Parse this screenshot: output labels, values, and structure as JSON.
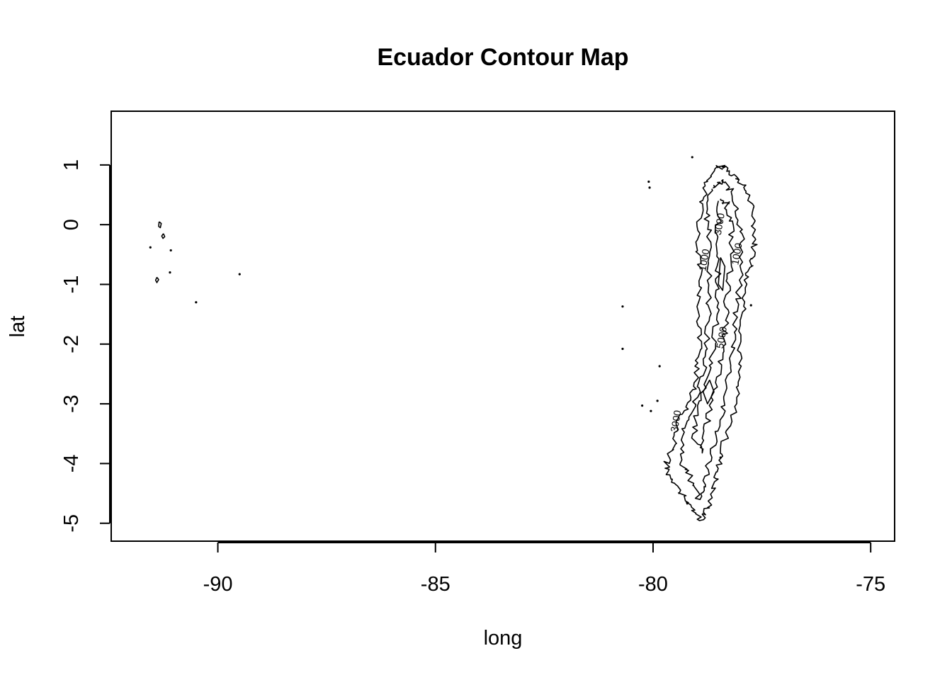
{
  "chart_data": {
    "type": "contour",
    "title": "Ecuador Contour Map",
    "xlabel": "long",
    "ylabel": "lat",
    "xlim": [
      -92.45,
      -74.45
    ],
    "ylim": [
      -5.3,
      1.9
    ],
    "x_ticks": [
      -90,
      -85,
      -80,
      -75
    ],
    "x_tick_labels": [
      "-90",
      "-85",
      "-80",
      "-75"
    ],
    "y_ticks": [
      1,
      0,
      -1,
      -2,
      -3,
      -4,
      -5
    ],
    "y_tick_labels": [
      "1",
      "0",
      "-1",
      "-2",
      "-3",
      "-4",
      "-5"
    ],
    "contour_levels": [
      1000,
      3000,
      5000,
      7000
    ],
    "contour_labels": [
      {
        "text": "1000",
        "long": -78.0,
        "lat": -0.5
      },
      {
        "text": "1000",
        "long": -78.75,
        "lat": -0.6
      },
      {
        "text": "3000",
        "long": -78.4,
        "lat": 0.0
      },
      {
        "text": "5000",
        "long": -78.35,
        "lat": -1.9
      },
      {
        "text": "3000",
        "long": -79.4,
        "lat": -3.3
      }
    ],
    "contours": [
      {
        "name": "andes-outer",
        "level": 1000,
        "points": [
          [
            -78.8,
            0.65
          ],
          [
            -78.55,
            0.95
          ],
          [
            -78.35,
            0.98
          ],
          [
            -78.1,
            0.8
          ],
          [
            -77.88,
            0.6
          ],
          [
            -77.7,
            0.25
          ],
          [
            -77.65,
            -0.2
          ],
          [
            -77.7,
            -0.6
          ],
          [
            -77.85,
            -0.9
          ],
          [
            -77.9,
            -1.4
          ],
          [
            -78.0,
            -2.0
          ],
          [
            -78.05,
            -2.6
          ],
          [
            -78.15,
            -3.2
          ],
          [
            -78.4,
            -3.7
          ],
          [
            -78.5,
            -4.1
          ],
          [
            -78.6,
            -4.4
          ],
          [
            -78.75,
            -4.75
          ],
          [
            -78.9,
            -4.95
          ],
          [
            -79.15,
            -4.7
          ],
          [
            -79.35,
            -4.5
          ],
          [
            -79.6,
            -4.25
          ],
          [
            -79.7,
            -4.0
          ],
          [
            -79.5,
            -3.7
          ],
          [
            -79.4,
            -3.3
          ],
          [
            -79.2,
            -3.0
          ],
          [
            -79.0,
            -2.65
          ],
          [
            -78.95,
            -2.2
          ],
          [
            -78.95,
            -1.6
          ],
          [
            -78.9,
            -1.0
          ],
          [
            -78.95,
            -0.4
          ],
          [
            -78.92,
            0.2
          ],
          [
            -78.8,
            0.65
          ]
        ]
      },
      {
        "name": "andes-inner-1",
        "level": 3000,
        "points": [
          [
            -78.65,
            0.6
          ],
          [
            -78.4,
            0.75
          ],
          [
            -78.2,
            0.55
          ],
          [
            -78.05,
            0.2
          ],
          [
            -77.95,
            -0.3
          ],
          [
            -78.0,
            -0.9
          ],
          [
            -78.1,
            -1.5
          ],
          [
            -78.15,
            -2.1
          ],
          [
            -78.3,
            -2.7
          ],
          [
            -78.45,
            -3.3
          ],
          [
            -78.65,
            -3.8
          ],
          [
            -78.8,
            -4.3
          ],
          [
            -78.95,
            -4.6
          ],
          [
            -79.1,
            -4.3
          ],
          [
            -79.35,
            -4.0
          ],
          [
            -79.3,
            -3.5
          ],
          [
            -79.05,
            -3.0
          ],
          [
            -78.85,
            -2.5
          ],
          [
            -78.75,
            -1.9
          ],
          [
            -78.72,
            -1.2
          ],
          [
            -78.7,
            -0.5
          ],
          [
            -78.75,
            0.1
          ],
          [
            -78.65,
            0.6
          ]
        ]
      },
      {
        "name": "andes-inner-2",
        "level": 5000,
        "points": [
          [
            -78.5,
            0.4
          ],
          [
            -78.3,
            0.35
          ],
          [
            -78.2,
            0.0
          ],
          [
            -78.2,
            -0.6
          ],
          [
            -78.3,
            -1.2
          ],
          [
            -78.35,
            -1.8
          ],
          [
            -78.45,
            -2.3
          ],
          [
            -78.6,
            -2.8
          ],
          [
            -78.75,
            -3.3
          ],
          [
            -78.9,
            -3.8
          ],
          [
            -79.05,
            -3.6
          ],
          [
            -79.0,
            -3.1
          ],
          [
            -78.8,
            -2.6
          ],
          [
            -78.6,
            -2.1
          ],
          [
            -78.55,
            -1.5
          ],
          [
            -78.5,
            -0.9
          ],
          [
            -78.5,
            -0.3
          ],
          [
            -78.5,
            0.4
          ]
        ]
      },
      {
        "name": "andes-inner-3",
        "level": 7000,
        "points": [
          [
            -78.45,
            -0.55
          ],
          [
            -78.35,
            -0.7
          ],
          [
            -78.4,
            -1.1
          ],
          [
            -78.5,
            -1.0
          ],
          [
            -78.45,
            -0.55
          ]
        ]
      },
      {
        "name": "andes-inner-4",
        "level": 7000,
        "points": [
          [
            -78.7,
            -2.6
          ],
          [
            -78.6,
            -2.8
          ],
          [
            -78.75,
            -3.0
          ],
          [
            -78.85,
            -2.8
          ],
          [
            -78.7,
            -2.6
          ]
        ]
      },
      {
        "name": "galapagos-1",
        "level": 1000,
        "points": [
          [
            -91.35,
            0.05
          ],
          [
            -91.3,
            0.02
          ],
          [
            -91.32,
            -0.05
          ],
          [
            -91.36,
            -0.03
          ],
          [
            -91.35,
            0.05
          ]
        ]
      },
      {
        "name": "galapagos-2",
        "level": 1000,
        "points": [
          [
            -91.25,
            -0.15
          ],
          [
            -91.22,
            -0.2
          ],
          [
            -91.26,
            -0.23
          ],
          [
            -91.29,
            -0.19
          ],
          [
            -91.25,
            -0.15
          ]
        ]
      },
      {
        "name": "galapagos-3",
        "level": 1000,
        "points": [
          [
            -91.4,
            -0.88
          ],
          [
            -91.36,
            -0.92
          ],
          [
            -91.4,
            -0.97
          ],
          [
            -91.43,
            -0.93
          ],
          [
            -91.4,
            -0.88
          ]
        ]
      }
    ],
    "points": [
      {
        "long": -91.55,
        "lat": -0.38
      },
      {
        "long": -91.1,
        "lat": -0.8
      },
      {
        "long": -91.08,
        "lat": -0.43
      },
      {
        "long": -89.5,
        "lat": -0.83
      },
      {
        "long": -90.5,
        "lat": -1.3
      },
      {
        "long": -79.1,
        "lat": 1.13
      },
      {
        "long": -80.1,
        "lat": 0.72
      },
      {
        "long": -80.08,
        "lat": 0.62
      },
      {
        "long": -80.7,
        "lat": -1.37
      },
      {
        "long": -80.7,
        "lat": -2.08
      },
      {
        "long": -79.85,
        "lat": -2.37
      },
      {
        "long": -79.9,
        "lat": -2.95
      },
      {
        "long": -80.25,
        "lat": -3.03
      },
      {
        "long": -80.05,
        "lat": -3.12
      },
      {
        "long": -77.75,
        "lat": -1.35
      },
      {
        "long": -78.45,
        "lat": -3.9
      }
    ],
    "grid": false,
    "legend": "none"
  }
}
